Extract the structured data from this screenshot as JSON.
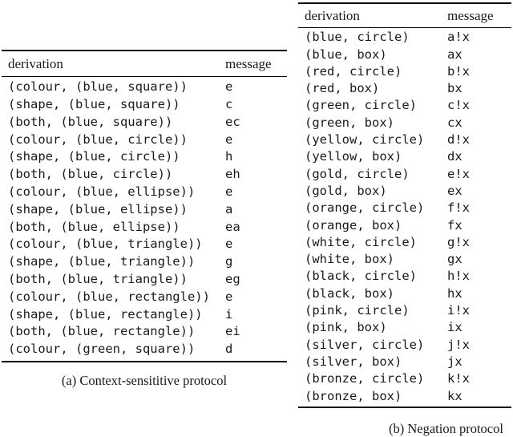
{
  "page": {
    "background": "#ffffff",
    "text_color": "#1a1a1a",
    "rule_color": "#000000"
  },
  "table_a": {
    "headers": {
      "derivation": "derivation",
      "message": "message"
    },
    "rows": [
      {
        "derivation": "(colour, (blue, square))",
        "message": "e"
      },
      {
        "derivation": "(shape, (blue, square))",
        "message": "c"
      },
      {
        "derivation": "(both, (blue, square))",
        "message": "ec"
      },
      {
        "derivation": "(colour, (blue, circle))",
        "message": "e"
      },
      {
        "derivation": "(shape, (blue, circle))",
        "message": "h"
      },
      {
        "derivation": "(both, (blue, circle))",
        "message": "eh"
      },
      {
        "derivation": "(colour, (blue, ellipse))",
        "message": "e"
      },
      {
        "derivation": "(shape, (blue, ellipse))",
        "message": "a"
      },
      {
        "derivation": "(both, (blue, ellipse))",
        "message": "ea"
      },
      {
        "derivation": "(colour, (blue, triangle))",
        "message": "e"
      },
      {
        "derivation": "(shape, (blue, triangle))",
        "message": "g"
      },
      {
        "derivation": "(both, (blue, triangle))",
        "message": "eg"
      },
      {
        "derivation": "(colour, (blue, rectangle))",
        "message": "e"
      },
      {
        "derivation": "(shape, (blue, rectangle))",
        "message": "i"
      },
      {
        "derivation": "(both, (blue, rectangle))",
        "message": "ei"
      },
      {
        "derivation": "(colour, (green, square))",
        "message": "d"
      }
    ],
    "caption": "(a) Context-sensititive protocol"
  },
  "table_b": {
    "headers": {
      "derivation": "derivation",
      "message": "message"
    },
    "rows": [
      {
        "derivation": "(blue, circle)",
        "message": "a!x"
      },
      {
        "derivation": "(blue, box)",
        "message": "ax"
      },
      {
        "derivation": "(red, circle)",
        "message": "b!x"
      },
      {
        "derivation": "(red, box)",
        "message": "bx"
      },
      {
        "derivation": "(green, circle)",
        "message": "c!x"
      },
      {
        "derivation": "(green, box)",
        "message": "cx"
      },
      {
        "derivation": "(yellow, circle)",
        "message": "d!x"
      },
      {
        "derivation": "(yellow, box)",
        "message": "dx"
      },
      {
        "derivation": "(gold, circle)",
        "message": "e!x"
      },
      {
        "derivation": "(gold, box)",
        "message": "ex"
      },
      {
        "derivation": "(orange, circle)",
        "message": "f!x"
      },
      {
        "derivation": "(orange, box)",
        "message": "fx"
      },
      {
        "derivation": "(white, circle)",
        "message": "g!x"
      },
      {
        "derivation": "(white, box)",
        "message": "gx"
      },
      {
        "derivation": "(black, circle)",
        "message": "h!x"
      },
      {
        "derivation": "(black, box)",
        "message": "hx"
      },
      {
        "derivation": "(pink, circle)",
        "message": "i!x"
      },
      {
        "derivation": "(pink, box)",
        "message": "ix"
      },
      {
        "derivation": "(silver, circle)",
        "message": "j!x"
      },
      {
        "derivation": "(silver, box)",
        "message": "jx"
      },
      {
        "derivation": "(bronze, circle)",
        "message": "k!x"
      },
      {
        "derivation": "(bronze, box)",
        "message": "kx"
      }
    ],
    "caption": "(b) Negation protocol"
  }
}
